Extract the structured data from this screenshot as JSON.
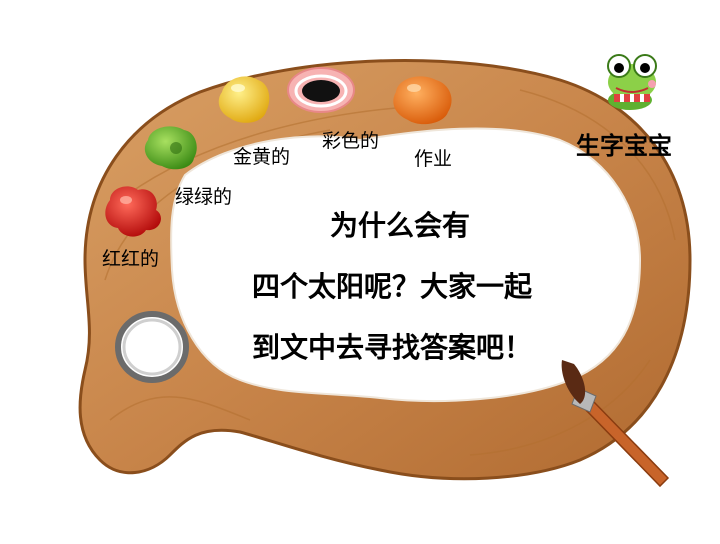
{
  "labels": {
    "red": "红红的",
    "green": "绿绿的",
    "golden": "金黄的",
    "colorful": "彩色的",
    "homework": "作业"
  },
  "title": "生字宝宝",
  "message": {
    "line1": "为什么会有",
    "line2": "四个太阳呢？大家一起",
    "line3": "到文中去寻找答案吧！"
  },
  "colors": {
    "wood": "#c8894a",
    "wood_dark": "#a8652b",
    "paint_red": "#d01818",
    "paint_green": "#5bb52a",
    "paint_yellow": "#f2c51b",
    "paint_orange": "#f07a12",
    "paint_pink": "#f4a0a8",
    "frog_green": "#7bc23a"
  }
}
